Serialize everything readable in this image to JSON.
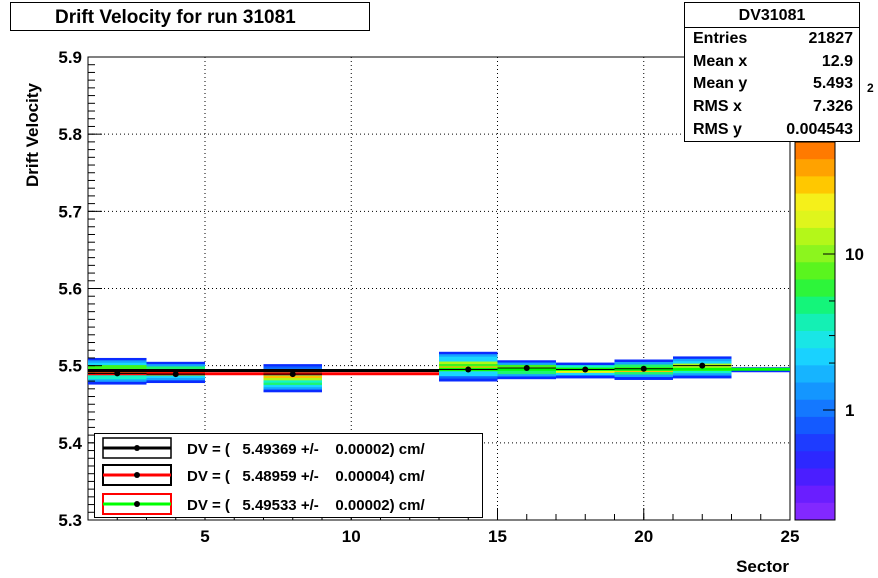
{
  "title": "Drift Velocity for run 31081",
  "stats": {
    "name": "DV31081",
    "rows": [
      {
        "key": "Entries",
        "value": "21827"
      },
      {
        "key": "Mean x",
        "value": "12.9"
      },
      {
        "key": "Mean y",
        "value": "5.493"
      },
      {
        "key": "RMS x",
        "value": "7.326"
      },
      {
        "key": "RMS y",
        "value": "0.004543"
      }
    ]
  },
  "colors": {
    "fit_black": "#000000",
    "fit_red": "#ff0000",
    "fit_green": "#00ff00"
  },
  "chart_data": {
    "type": "heatmap",
    "title": "Drift Velocity for run 31081",
    "xlabel": "Sector",
    "ylabel": "Drift Velocity",
    "xlim": [
      1,
      25
    ],
    "ylim": [
      5.3,
      5.9
    ],
    "x_ticks": [
      "5",
      "10",
      "15",
      "20",
      "25"
    ],
    "y_ticks": [
      "5.3",
      "5.4",
      "5.5",
      "5.6",
      "5.7",
      "5.8",
      "5.9"
    ],
    "colorbar": {
      "scale": "log",
      "tick_labels": [
        "1",
        "10"
      ],
      "partial_label": "2"
    },
    "grid": true,
    "legend_placement": "bottom-left",
    "bins": [
      {
        "x0": 1,
        "x1": 3,
        "y0": 5.476,
        "y1": 5.51
      },
      {
        "x0": 3,
        "x1": 5,
        "y0": 5.478,
        "y1": 5.505
      },
      {
        "x0": 7,
        "x1": 9,
        "y0": 5.466,
        "y1": 5.502
      },
      {
        "x0": 13,
        "x1": 15,
        "y0": 5.48,
        "y1": 5.518
      },
      {
        "x0": 15,
        "x1": 17,
        "y0": 5.483,
        "y1": 5.507
      },
      {
        "x0": 17,
        "x1": 19,
        "y0": 5.484,
        "y1": 5.504
      },
      {
        "x0": 19,
        "x1": 21,
        "y0": 5.482,
        "y1": 5.508
      },
      {
        "x0": 21,
        "x1": 23,
        "y0": 5.484,
        "y1": 5.512
      },
      {
        "x0": 23,
        "x1": 25,
        "y0": 5.492,
        "y1": 5.498
      }
    ],
    "points": [
      {
        "x": 2,
        "y": 5.49
      },
      {
        "x": 4,
        "y": 5.489
      },
      {
        "x": 8,
        "y": 5.489
      },
      {
        "x": 14,
        "y": 5.495
      },
      {
        "x": 16,
        "y": 5.497
      },
      {
        "x": 18,
        "y": 5.495
      },
      {
        "x": 20,
        "y": 5.496
      },
      {
        "x": 22,
        "y": 5.5
      }
    ],
    "fits": [
      {
        "label": "DV = (   5.49369 +/-    0.00002) cm/",
        "value": 5.49369,
        "x0": 1,
        "x1": 13,
        "color": "#000000"
      },
      {
        "label": "DV = (   5.48959 +/-    0.00004) cm/",
        "value": 5.48959,
        "x0": 1,
        "x1": 13,
        "color": "#ff0000"
      },
      {
        "label": "DV = (   5.49533 +/-    0.00002) cm/",
        "value": 5.49533,
        "x0": 13,
        "x1": 25,
        "color": "#00ff00"
      }
    ]
  }
}
